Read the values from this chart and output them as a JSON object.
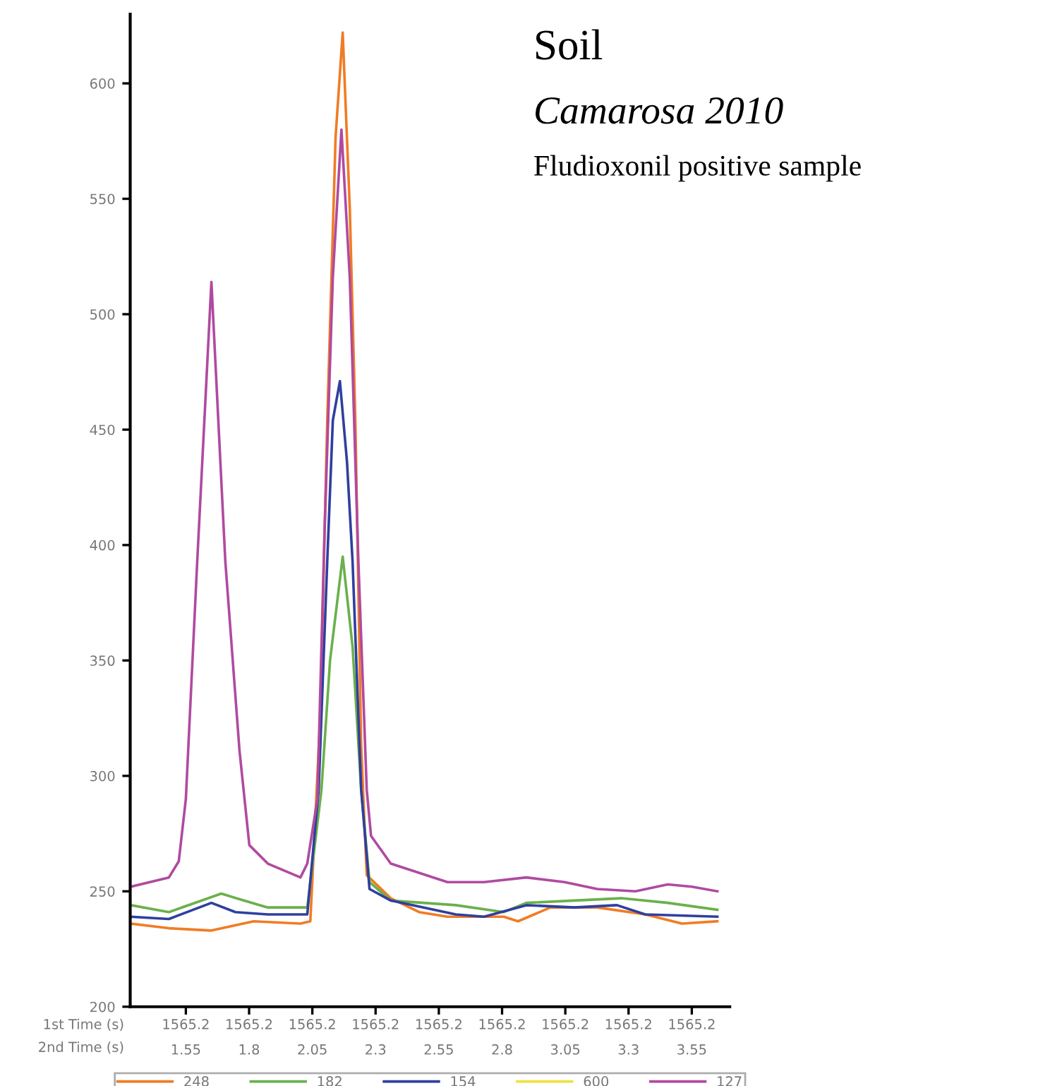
{
  "chart_data": {
    "type": "line",
    "xlabel": "2nd Time (s)",
    "annotations": [
      "Soil",
      "Camarosa 2010",
      "Fludioxonil positive sample",
      "1st Time (s)",
      "1565.2",
      "1565.2",
      "1565.2",
      "1565.2",
      "1565.2",
      "1565.2",
      "1565.2",
      "1565.2",
      "1565.2"
    ],
    "xlim": [
      1.33,
      3.7
    ],
    "ylim": [
      200,
      630
    ],
    "xticks": [
      1.55,
      1.8,
      2.05,
      2.3,
      2.55,
      2.8,
      3.05,
      3.3,
      3.55
    ],
    "yticks": [
      200,
      250,
      300,
      350,
      400,
      450,
      500,
      550,
      600
    ],
    "grid": false,
    "legend": "bottom",
    "marker": "none",
    "line_style": "solid",
    "series": [
      {
        "name": "248",
        "color": "#f07c24",
        "x": [
          1.332,
          1.483,
          1.651,
          1.818,
          2.003,
          2.042,
          2.081,
          2.109,
          2.142,
          2.17,
          2.198,
          2.22,
          2.243,
          2.265,
          2.36,
          2.472,
          2.584,
          2.807,
          2.863,
          2.991,
          3.176,
          3.366,
          3.511,
          3.651
        ],
        "values": [
          236,
          234,
          233,
          237,
          236,
          237,
          325,
          454,
          577,
          622,
          546,
          454,
          313,
          257,
          247,
          241,
          239,
          239,
          237,
          243,
          243,
          240,
          236,
          237
        ]
      },
      {
        "name": "182",
        "color": "#6ab04c",
        "x": [
          1.332,
          1.483,
          1.69,
          1.779,
          1.874,
          2.03,
          2.086,
          2.12,
          2.17,
          2.209,
          2.243,
          2.276,
          2.36,
          2.617,
          2.807,
          2.896,
          3.271,
          3.455,
          3.651
        ],
        "values": [
          244,
          241,
          249,
          246,
          243,
          243,
          294,
          350,
          395,
          356,
          294,
          254,
          246,
          244,
          241,
          245,
          247,
          245,
          242
        ]
      },
      {
        "name": "154",
        "color": "#2f3f9f",
        "x": [
          1.332,
          1.483,
          1.651,
          1.746,
          1.874,
          2.03,
          2.075,
          2.109,
          2.131,
          2.159,
          2.187,
          2.209,
          2.243,
          2.276,
          2.36,
          2.617,
          2.729,
          2.896,
          3.086,
          3.254,
          3.366,
          3.651
        ],
        "values": [
          239,
          238,
          245,
          241,
          240,
          240,
          294,
          393,
          454,
          471,
          436,
          393,
          294,
          251,
          246,
          240,
          239,
          244,
          243,
          244,
          240,
          239
        ]
      },
      {
        "name": "600",
        "color": "#f0e040"
      },
      {
        "name": "127",
        "color": "#b04aa0",
        "x": [
          1.332,
          1.483,
          1.522,
          1.55,
          1.595,
          1.651,
          1.706,
          1.762,
          1.801,
          1.874,
          2.003,
          2.03,
          2.07,
          2.098,
          2.131,
          2.165,
          2.198,
          2.232,
          2.265,
          2.282,
          2.36,
          2.584,
          2.729,
          2.896,
          3.047,
          3.176,
          3.327,
          3.455,
          3.55,
          3.651
        ],
        "values": [
          252,
          256,
          263,
          290,
          393,
          514,
          393,
          311,
          270,
          262,
          256,
          262,
          290,
          405,
          516,
          580,
          516,
          393,
          294,
          274,
          262,
          254,
          254,
          256,
          254,
          251,
          250,
          253,
          252,
          250
        ]
      }
    ]
  }
}
